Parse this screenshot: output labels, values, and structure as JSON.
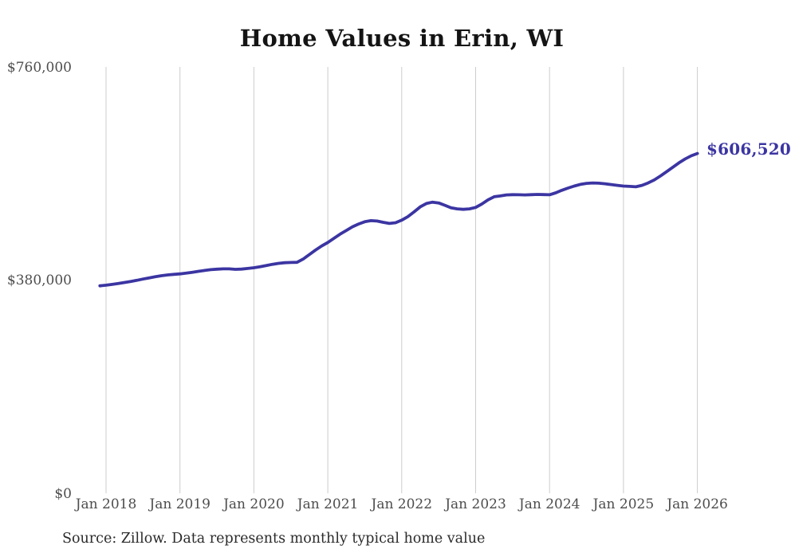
{
  "chart_data": {
    "type": "line",
    "title": "Home Values in Erin, WI",
    "source_note": "Source: Zillow. Data represents monthly typical home value",
    "end_label": "$606,520",
    "end_value": 606520,
    "x_tick_labels": [
      "Jan 2018",
      "Jan 2019",
      "Jan 2020",
      "Jan 2021",
      "Jan 2022",
      "Jan 2023",
      "Jan 2024",
      "Jan 2025",
      "Jan 2026"
    ],
    "y_ticks": [
      {
        "label": "$0",
        "value": 0
      },
      {
        "label": "$380,000",
        "value": 380000
      },
      {
        "label": "$760,000",
        "value": 760000
      }
    ],
    "ylim": [
      0,
      760000
    ],
    "grid": "vertical-only",
    "legend": "none",
    "line_color": "#3b35a2",
    "grid_color": "#cccccc",
    "frequency": "monthly",
    "series": [
      {
        "name": "Typical home value",
        "months": [
          "2017-12",
          "2018-01",
          "2018-02",
          "2018-03",
          "2018-04",
          "2018-05",
          "2018-06",
          "2018-07",
          "2018-08",
          "2018-09",
          "2018-10",
          "2018-11",
          "2018-12",
          "2019-01",
          "2019-02",
          "2019-03",
          "2019-04",
          "2019-05",
          "2019-06",
          "2019-07",
          "2019-08",
          "2019-09",
          "2019-10",
          "2019-11",
          "2019-12",
          "2020-01",
          "2020-02",
          "2020-03",
          "2020-04",
          "2020-05",
          "2020-06",
          "2020-07",
          "2020-08",
          "2020-09",
          "2020-10",
          "2020-11",
          "2020-12",
          "2021-01",
          "2021-02",
          "2021-03",
          "2021-04",
          "2021-05",
          "2021-06",
          "2021-07",
          "2021-08",
          "2021-09",
          "2021-10",
          "2021-11",
          "2021-12",
          "2022-01",
          "2022-02",
          "2022-03",
          "2022-04",
          "2022-05",
          "2022-06",
          "2022-07",
          "2022-08",
          "2022-09",
          "2022-10",
          "2022-11",
          "2022-12",
          "2023-01",
          "2023-02",
          "2023-03",
          "2023-04",
          "2023-05",
          "2023-06",
          "2023-07",
          "2023-08",
          "2023-09",
          "2023-10",
          "2023-11",
          "2023-12",
          "2024-01",
          "2024-02",
          "2024-03",
          "2024-04",
          "2024-05",
          "2024-06",
          "2024-07",
          "2024-08",
          "2024-09",
          "2024-10",
          "2024-11",
          "2024-12",
          "2025-01",
          "2025-02",
          "2025-03",
          "2025-04",
          "2025-05",
          "2025-06",
          "2025-07",
          "2025-08",
          "2025-09",
          "2025-10",
          "2025-11",
          "2025-12",
          "2026-01"
        ],
        "values": [
          370800,
          372000,
          373400,
          375000,
          376800,
          378700,
          380700,
          382900,
          385000,
          387000,
          388800,
          390300,
          391300,
          392100,
          393400,
          395000,
          396700,
          398300,
          399600,
          400500,
          401100,
          401100,
          400200,
          400700,
          401800,
          403000,
          404800,
          406900,
          409100,
          410900,
          412000,
          412400,
          412700,
          418500,
          426500,
          434500,
          441800,
          448100,
          455500,
          463000,
          469500,
          476000,
          481000,
          485000,
          487000,
          486200,
          484000,
          482000,
          483200,
          487800,
          494000,
          502500,
          511500,
          517500,
          519900,
          518500,
          514300,
          510000,
          507900,
          507100,
          507900,
          510500,
          516500,
          524000,
          529500,
          531000,
          532800,
          533200,
          533000,
          532800,
          533200,
          533600,
          533400,
          533000,
          536500,
          541000,
          545000,
          548500,
          551500,
          553300,
          554000,
          553600,
          552600,
          551200,
          549800,
          548600,
          547900,
          547200,
          549800,
          554000,
          559500,
          566500,
          574200,
          582000,
          589800,
          596800,
          602500,
          606520
        ]
      }
    ]
  }
}
